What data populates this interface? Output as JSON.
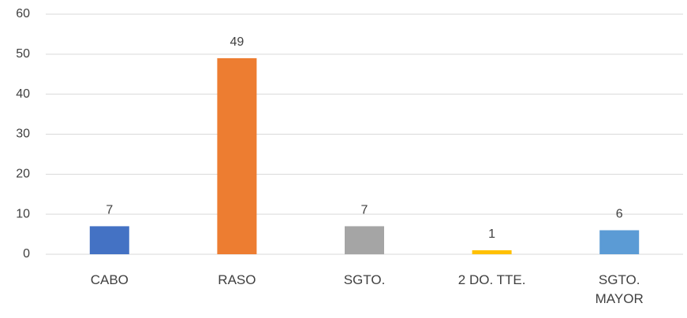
{
  "chart_data": {
    "type": "bar",
    "categories": [
      "CABO",
      "RASO",
      "SGTO.",
      "2 DO. TTE.",
      "SGTO. MAYOR"
    ],
    "values": [
      7,
      49,
      7,
      1,
      6
    ],
    "colors": [
      "#4472c4",
      "#ed7d31",
      "#a5a5a5",
      "#ffc000",
      "#5b9bd5"
    ],
    "ylim": [
      0,
      60
    ],
    "yticks": [
      0,
      10,
      20,
      30,
      40,
      50,
      60
    ],
    "grid": true
  }
}
